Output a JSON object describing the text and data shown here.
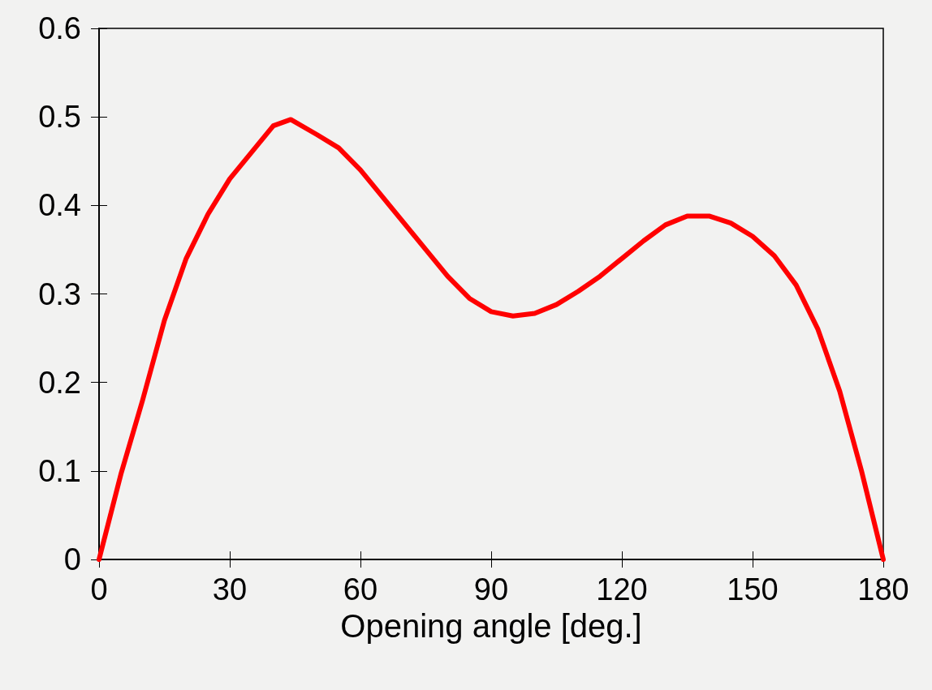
{
  "chart_data": {
    "type": "line",
    "xlabel": "Opening angle [deg.]",
    "x": [
      0,
      5,
      10,
      15,
      20,
      25,
      30,
      35,
      40,
      44,
      50,
      55,
      60,
      65,
      70,
      75,
      80,
      85,
      90,
      95,
      100,
      105,
      110,
      115,
      120,
      125,
      130,
      135,
      140,
      145,
      150,
      155,
      160,
      165,
      170,
      175,
      180
    ],
    "series": [
      {
        "color": "#ff0000",
        "values": [
          0,
          0.096,
          0.18,
          0.27,
          0.34,
          0.39,
          0.43,
          0.46,
          0.49,
          0.497,
          0.48,
          0.465,
          0.44,
          0.41,
          0.38,
          0.35,
          0.32,
          0.295,
          0.28,
          0.275,
          0.278,
          0.288,
          0.303,
          0.32,
          0.34,
          0.36,
          0.378,
          0.388,
          0.388,
          0.38,
          0.365,
          0.343,
          0.31,
          0.26,
          0.19,
          0.1,
          0
        ]
      }
    ],
    "xlim": [
      0,
      180
    ],
    "xticks": [
      0,
      30,
      60,
      90,
      120,
      150,
      180
    ],
    "ylim": [
      0,
      0.6
    ],
    "yticks": [
      0,
      0.1,
      0.2,
      0.3,
      0.4,
      0.5,
      0.6
    ],
    "grid": false,
    "marker": "none",
    "line_style": "solid"
  }
}
